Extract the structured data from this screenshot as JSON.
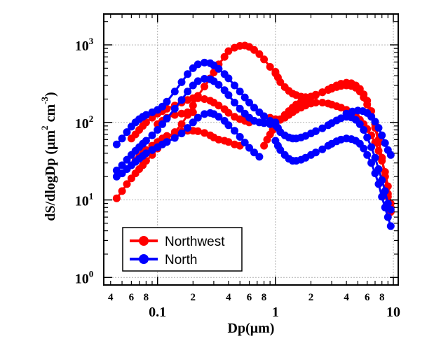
{
  "chart_data": {
    "type": "line",
    "title": "",
    "xlabel": "Dp(μm)",
    "ylabel_parts": [
      "dS/dlogDp (μm",
      "2",
      " cm",
      "-3",
      ")"
    ],
    "xscale": "log",
    "yscale": "log",
    "xlim": [
      0.035,
      11
    ],
    "ylim": [
      0.8,
      2500
    ],
    "grid": true,
    "legend_position": "bottom-left",
    "x_major_ticks": [
      {
        "value": 0.1,
        "label": "0.1"
      },
      {
        "value": 1,
        "label": "1"
      },
      {
        "value": 10,
        "label": "10"
      }
    ],
    "x_minor_ticks": [
      {
        "value": 0.04,
        "label": "4"
      },
      {
        "value": 0.06,
        "label": "6"
      },
      {
        "value": 0.08,
        "label": "8"
      },
      {
        "value": 0.2,
        "label": "2"
      },
      {
        "value": 0.4,
        "label": "4"
      },
      {
        "value": 0.6,
        "label": "6"
      },
      {
        "value": 0.8,
        "label": "8"
      },
      {
        "value": 2,
        "label": "2"
      },
      {
        "value": 4,
        "label": "4"
      },
      {
        "value": 6,
        "label": "6"
      },
      {
        "value": 8,
        "label": "8"
      }
    ],
    "y_major_ticks": [
      {
        "value": 1,
        "base": "10",
        "exp": "0"
      },
      {
        "value": 10,
        "base": "10",
        "exp": "1"
      },
      {
        "value": 100,
        "base": "10",
        "exp": "2"
      },
      {
        "value": 1000,
        "base": "10",
        "exp": "3"
      }
    ],
    "series": [
      {
        "name": "Northwest",
        "color": "#ff0000",
        "segments": [
          {
            "x": [
              0.045,
              0.05,
              0.055,
              0.06,
              0.065,
              0.07,
              0.075,
              0.08,
              0.09,
              0.1,
              0.11,
              0.12,
              0.14,
              0.16,
              0.18,
              0.2,
              0.22,
              0.25,
              0.28,
              0.3,
              0.33,
              0.37,
              0.4,
              0.45,
              0.5,
              0.55,
              0.6,
              0.66,
              0.73,
              0.8,
              0.9,
              1.0
            ],
            "y": [
              10.5,
              13,
              16,
              19,
              22,
              25,
              28,
              32,
              38,
              46,
              53,
              60,
              75,
              95,
              125,
              165,
              220,
              290,
              370,
              440,
              560,
              700,
              830,
              920,
              970,
              980,
              940,
              860,
              760,
              650,
              520,
              450
            ]
          },
          {
            "x": [
              0.06,
              0.065,
              0.07,
              0.075,
              0.08,
              0.09,
              0.1,
              0.11,
              0.12,
              0.14,
              0.16,
              0.18,
              0.2,
              0.22,
              0.25,
              0.28,
              0.3,
              0.33,
              0.37,
              0.4,
              0.45,
              0.5,
              0.55,
              0.6
            ],
            "y": [
              62,
              70,
              80,
              90,
              100,
              115,
              130,
              140,
              150,
              165,
              180,
              195,
              205,
              205,
              200,
              190,
              180,
              165,
              148,
              133,
              118,
              110,
              105,
              100
            ]
          },
          {
            "x": [
              0.06,
              0.065,
              0.07,
              0.075,
              0.08,
              0.09,
              0.1,
              0.11,
              0.12,
              0.14,
              0.16,
              0.18,
              0.2,
              0.22,
              0.25,
              0.28,
              0.3,
              0.33,
              0.37,
              0.4,
              0.45,
              0.5
            ],
            "y": [
              28,
              32,
              36,
              40,
              44,
              50,
              56,
              62,
              67,
              72,
              76,
              78,
              78,
              77,
              73,
              68,
              64,
              60,
              58,
              56,
              52,
              50
            ]
          },
          {
            "x": [
              0.1,
              0.11,
              0.12,
              0.14,
              0.16,
              0.18,
              0.2
            ],
            "y": [
              95,
              105,
              115,
              125,
              130,
              135,
              135
            ]
          },
          {
            "x": [
              1.0,
              1.05,
              1.1,
              1.2,
              1.3,
              1.4,
              1.5,
              1.65,
              1.8,
              2.0,
              2.2,
              2.5,
              2.8,
              3.0,
              3.3,
              3.6,
              4.0,
              4.4,
              4.8,
              5.2,
              5.6,
              6.0,
              6.5,
              7.0,
              7.5,
              8.0,
              8.5,
              9.0,
              9.5
            ],
            "y": [
              430,
              380,
              330,
              285,
              255,
              235,
              225,
              215,
              212,
              215,
              225,
              245,
              265,
              280,
              300,
              315,
              325,
              320,
              300,
              270,
              230,
              190,
              140,
              95,
              60,
              35,
              20,
              12,
              8
            ]
          },
          {
            "x": [
              0.8,
              0.85,
              0.9,
              0.95,
              1.0,
              1.1,
              1.2,
              1.3,
              1.4,
              1.5,
              1.65,
              1.8,
              2.0,
              2.2,
              2.5,
              2.8,
              3.0,
              3.3,
              3.6,
              4.0,
              4.4,
              4.8,
              5.2,
              5.6,
              6.0,
              6.5,
              7.0,
              7.5,
              8.0,
              8.5,
              9.0,
              9.5
            ],
            "y": [
              50,
              60,
              70,
              80,
              90,
              108,
              125,
              140,
              155,
              170,
              185,
              200,
              215,
              228,
              245,
              262,
              272,
              285,
              295,
              300,
              295,
              280,
              250,
              210,
              170,
              120,
              85,
              55,
              35,
              20,
              11,
              7
            ]
          },
          {
            "x": [
              0.8,
              0.9,
              1.0,
              1.1,
              1.2,
              1.3,
              1.4,
              1.5,
              1.65,
              1.8,
              2.0,
              2.2,
              2.5,
              2.8,
              3.0,
              3.3,
              3.6,
              4.0,
              4.4,
              4.8,
              5.2,
              5.6,
              6.0,
              6.5,
              7.0,
              7.5,
              8.0,
              8.5,
              9.0,
              9.5
            ],
            "y": [
              120,
              115,
              110,
              110,
              115,
              125,
              135,
              145,
              155,
              165,
              175,
              180,
              180,
              175,
              170,
              162,
              155,
              145,
              135,
              122,
              108,
              95,
              82,
              68,
              55,
              43,
              32,
              23,
              15,
              9
            ]
          }
        ]
      },
      {
        "name": "North",
        "color": "#0000ff",
        "segments": [
          {
            "x": [
              0.045,
              0.05,
              0.055,
              0.06,
              0.065,
              0.07,
              0.075,
              0.08,
              0.09,
              0.1,
              0.11,
              0.12,
              0.14,
              0.16,
              0.18,
              0.2,
              0.22,
              0.25,
              0.28,
              0.3,
              0.33,
              0.37,
              0.4,
              0.45,
              0.5,
              0.55,
              0.6,
              0.66,
              0.73,
              0.8,
              0.9,
              1.0
            ],
            "y": [
              52,
              62,
              75,
              88,
              100,
              110,
              118,
              125,
              135,
              145,
              160,
              185,
              250,
              330,
              420,
              500,
              560,
              590,
              580,
              545,
              490,
              420,
              370,
              300,
              250,
              210,
              180,
              155,
              135,
              120,
              105,
              100
            ]
          },
          {
            "x": [
              0.045,
              0.05,
              0.055,
              0.06,
              0.065,
              0.07,
              0.075,
              0.08,
              0.09,
              0.1,
              0.11,
              0.12,
              0.14,
              0.16,
              0.18,
              0.2,
              0.22,
              0.25,
              0.28,
              0.3,
              0.33,
              0.37,
              0.4,
              0.45,
              0.5,
              0.55,
              0.6,
              0.66,
              0.73,
              0.8,
              0.9,
              1.0
            ],
            "y": [
              24,
              28,
              33,
              38,
              43,
              48,
              53,
              58,
              68,
              80,
              95,
              112,
              150,
              195,
              250,
              300,
              340,
              365,
              360,
              340,
              305,
              260,
              225,
              180,
              150,
              130,
              115,
              105,
              100,
              98,
              95,
              92
            ]
          },
          {
            "x": [
              0.045,
              0.05,
              0.055,
              0.06,
              0.065,
              0.07,
              0.075,
              0.08,
              0.09,
              0.1,
              0.11,
              0.12,
              0.14,
              0.16,
              0.18,
              0.2,
              0.22,
              0.25,
              0.28,
              0.3,
              0.33,
              0.37,
              0.4,
              0.45,
              0.5,
              0.55,
              0.6,
              0.66,
              0.73
            ],
            "y": [
              20,
              22,
              25,
              28,
              31,
              34,
              37,
              40,
              44,
              48,
              52,
              56,
              63,
              72,
              85,
              100,
              115,
              128,
              132,
              128,
              118,
              105,
              92,
              78,
              65,
              55,
              47,
              41,
              36
            ]
          },
          {
            "x": [
              1.0,
              1.05,
              1.1,
              1.2,
              1.3,
              1.4,
              1.5,
              1.65,
              1.8,
              2.0,
              2.2,
              2.5,
              2.8,
              3.0,
              3.3,
              3.6,
              4.0,
              4.4,
              4.8,
              5.2,
              5.6,
              6.0,
              6.5,
              7.0,
              7.5,
              8.0,
              8.5,
              9.0,
              9.5
            ],
            "y": [
              58,
              50,
              44,
              38,
              34,
              32,
              32,
              33,
              35,
              38,
              41,
              45,
              50,
              53,
              57,
              60,
              62,
              61,
              58,
              53,
              46,
              38,
              30,
              22,
              16,
              11,
              8,
              6,
              4.6
            ]
          },
          {
            "x": [
              1.0,
              1.05,
              1.1,
              1.2,
              1.3,
              1.4,
              1.5,
              1.65,
              1.8,
              2.0,
              2.2,
              2.5,
              2.8,
              3.0,
              3.3,
              3.6,
              4.0,
              4.4,
              4.8,
              5.2,
              5.6,
              6.0,
              6.5,
              7.0,
              7.5,
              8.0,
              8.5,
              9.0,
              9.5
            ],
            "y": [
              95,
              85,
              75,
              68,
              64,
              62,
              62,
              64,
              67,
              72,
              77,
              84,
              92,
              98,
              106,
              113,
              118,
              116,
              108,
              95,
              80,
              64,
              48,
              35,
              25,
              18,
              13,
              9,
              7.5
            ]
          },
          {
            "x": [
              4.0,
              4.5,
              5.0,
              5.5,
              6.0,
              6.5,
              7.0,
              7.5,
              8.0,
              8.5,
              9.0,
              9.5
            ],
            "y": [
              130,
              138,
              142,
              140,
              132,
              118,
              102,
              85,
              68,
              54,
              44,
              38
            ]
          }
        ]
      }
    ]
  }
}
